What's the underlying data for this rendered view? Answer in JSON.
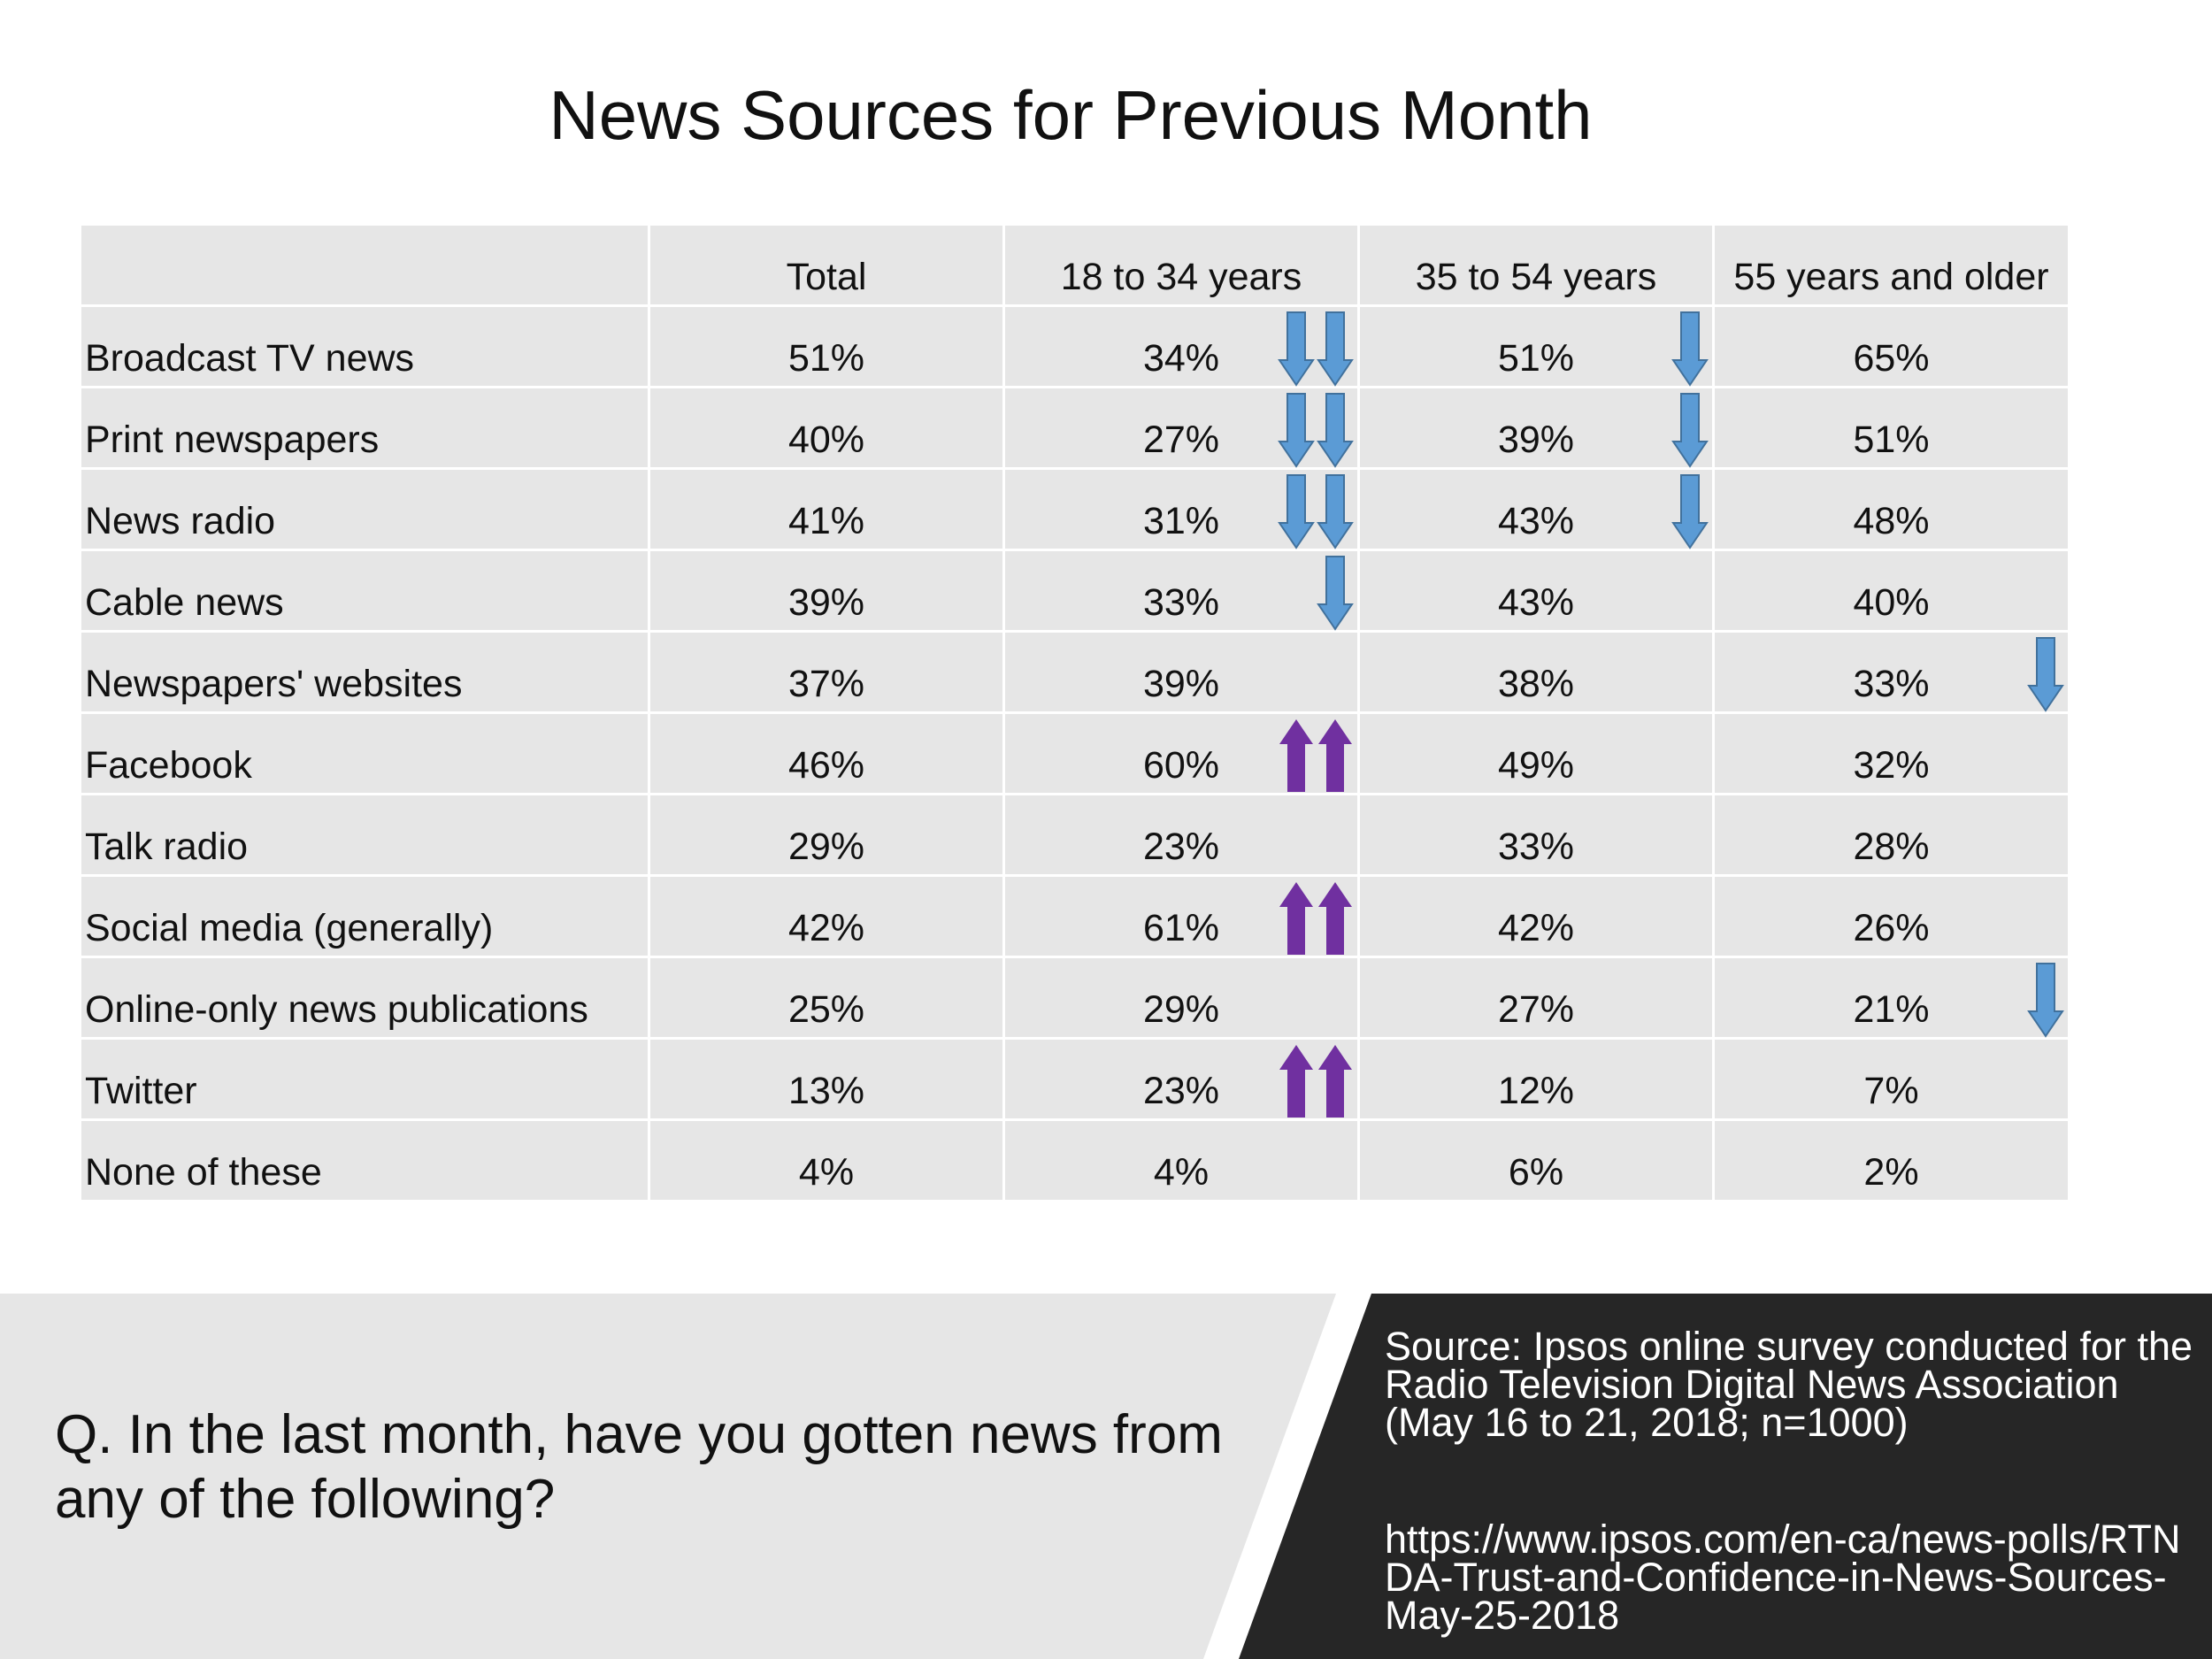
{
  "title": "News Sources for Previous Month",
  "colors": {
    "down_arrow": "#5b9bd5",
    "down_arrow_stroke": "#41719c",
    "up_arrow": "#7030a0",
    "table_bg": "#e6e6e6",
    "source_panel": "#262626"
  },
  "chart_data": {
    "type": "table",
    "title": "News Sources for Previous Month",
    "columns": [
      "",
      "Total",
      "18 to 34 years",
      "35 to 54 years",
      "55 years and older"
    ],
    "rows": [
      {
        "label": "Broadcast TV news",
        "values": [
          "51%",
          "34%",
          "51%",
          "65%"
        ],
        "arrows": {
          "18 to 34 years": "double-down",
          "35 to 54 years": "down"
        }
      },
      {
        "label": "Print newspapers",
        "values": [
          "40%",
          "27%",
          "39%",
          "51%"
        ],
        "arrows": {
          "18 to 34 years": "double-down",
          "35 to 54 years": "down"
        }
      },
      {
        "label": "News radio",
        "values": [
          "41%",
          "31%",
          "43%",
          "48%"
        ],
        "arrows": {
          "18 to 34 years": "double-down",
          "35 to 54 years": "down"
        }
      },
      {
        "label": "Cable news",
        "values": [
          "39%",
          "33%",
          "43%",
          "40%"
        ],
        "arrows": {
          "18 to 34 years": "down"
        }
      },
      {
        "label": "Newspapers' websites",
        "values": [
          "37%",
          "39%",
          "38%",
          "33%"
        ],
        "arrows": {
          "55 years and older": "down"
        }
      },
      {
        "label": "Facebook",
        "values": [
          "46%",
          "60%",
          "49%",
          "32%"
        ],
        "arrows": {
          "18 to 34 years": "double-up"
        }
      },
      {
        "label": "Talk radio",
        "values": [
          "29%",
          "23%",
          "33%",
          "28%"
        ],
        "arrows": {}
      },
      {
        "label": "Social media (generally)",
        "values": [
          "42%",
          "61%",
          "42%",
          "26%"
        ],
        "arrows": {
          "18 to 34 years": "double-up"
        }
      },
      {
        "label": "Online-only news publications",
        "values": [
          "25%",
          "29%",
          "27%",
          "21%"
        ],
        "arrows": {
          "55 years and older": "down"
        }
      },
      {
        "label": "Twitter",
        "values": [
          "13%",
          "23%",
          "12%",
          "7%"
        ],
        "arrows": {
          "18 to 34 years": "double-up"
        }
      },
      {
        "label": "None of these",
        "values": [
          "4%",
          "4%",
          "6%",
          "2%"
        ],
        "arrows": {}
      }
    ]
  },
  "question": "Q. In the last month, have you gotten news from any of the following?",
  "source": "Source:  Ipsos online survey conducted for  the Radio Television Digital News Association (May 16 to 21, 2018; n=1000)",
  "url": "https://www.ipsos.com/en-ca/news-polls/RTNDA-Trust-and-Confidence-in-News-Sources-May-25-2018"
}
